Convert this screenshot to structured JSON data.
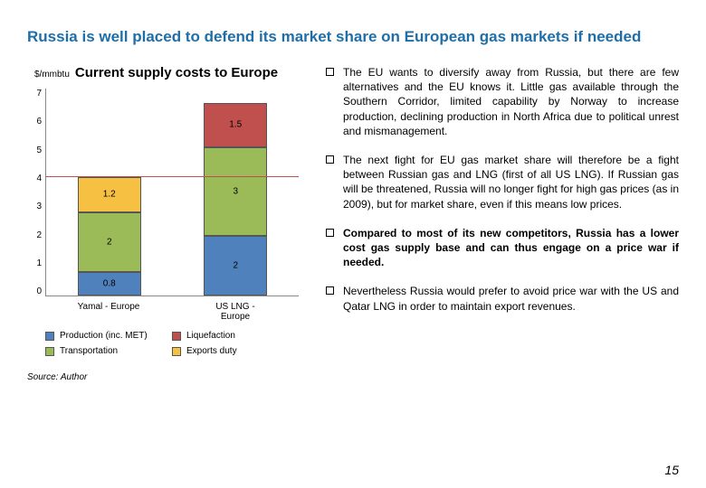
{
  "title": "Russia is well placed to defend its market share on European gas markets if needed",
  "chart": {
    "title": "Current supply costs to Europe",
    "y_unit": "$/mmbtu",
    "type": "stacked-bar",
    "ylim": [
      0,
      7
    ],
    "ytick_step": 1,
    "reference_line_y": 4,
    "reference_line_color": "#c0504d",
    "background_color": "#ffffff",
    "categories": [
      "Yamal - Europe",
      "US LNG - Europe"
    ],
    "series": [
      {
        "name": "Production (inc. MET)",
        "color": "#4f81bd"
      },
      {
        "name": "Liquefaction",
        "color": "#c0504d"
      },
      {
        "name": "Transportation",
        "color": "#9bbb59"
      },
      {
        "name": "Exports duty",
        "color": "#f6c143"
      }
    ],
    "segments": [
      {
        "cat": 0,
        "series": 0,
        "value": 0.8
      },
      {
        "cat": 0,
        "series": 2,
        "value": 2.0
      },
      {
        "cat": 0,
        "series": 3,
        "value": 1.2
      },
      {
        "cat": 1,
        "series": 0,
        "value": 2.0
      },
      {
        "cat": 1,
        "series": 2,
        "value": 3.0
      },
      {
        "cat": 1,
        "series": 1,
        "value": 1.5
      }
    ]
  },
  "source": "Source: Author",
  "bullets": [
    {
      "bold": false,
      "text": "The EU wants to diversify away from Russia, but there are few alternatives and the EU knows it. Little gas available through the Southern Corridor, limited capability by Norway to increase production, declining production in North Africa due to political unrest and mismanagement."
    },
    {
      "bold": false,
      "text": "The next fight for EU gas market share will therefore be a fight between Russian gas and LNG (first of all US LNG). If Russian gas will be threatened, Russia will no longer fight for high gas prices (as in 2009), but for market share, even if this means low prices."
    },
    {
      "bold": true,
      "text": "Compared to most of its new competitors, Russia has a lower cost gas supply base and can thus engage on a price war if needed."
    },
    {
      "bold": false,
      "text": "Nevertheless Russia would prefer to avoid price war with the US and Qatar LNG in order to maintain export revenues."
    }
  ],
  "page_number": "15"
}
